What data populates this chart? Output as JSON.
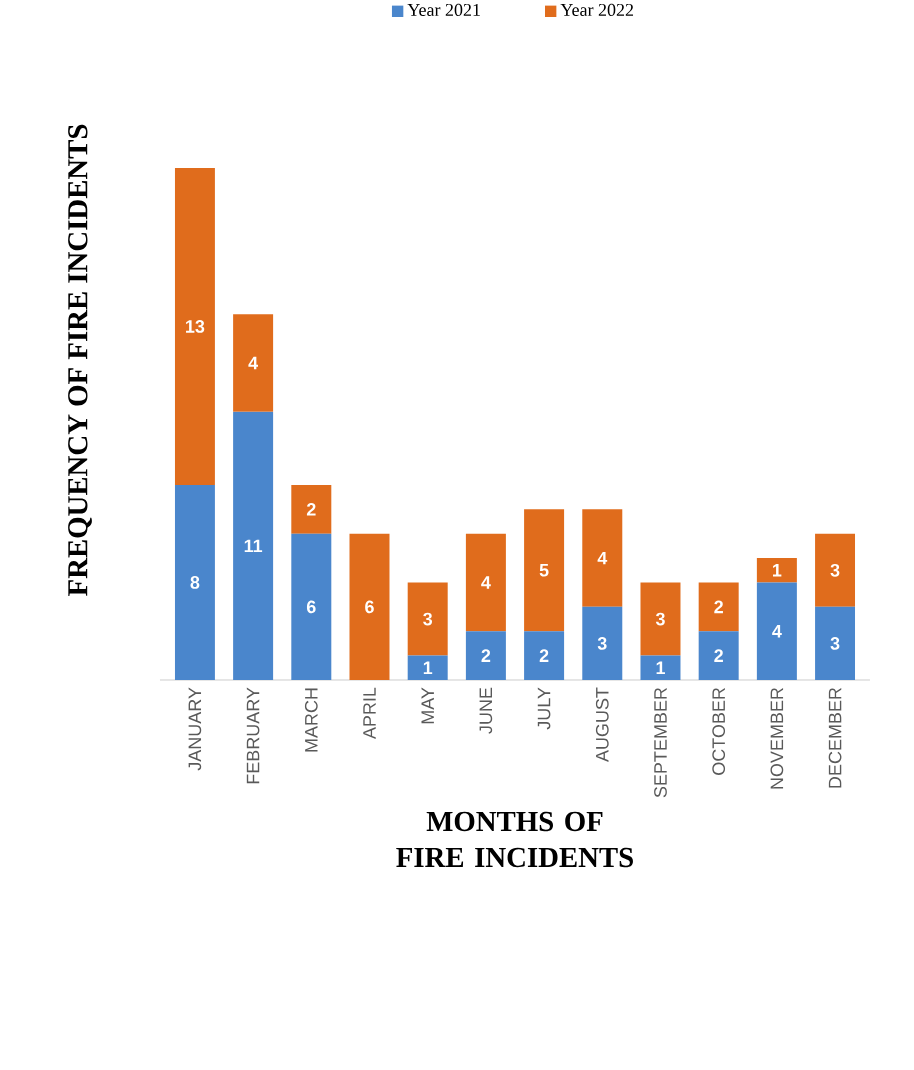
{
  "chart_data": {
    "type": "bar",
    "stacked": true,
    "xlabel": "MONTHS OF FIRE INCIDENTS",
    "ylabel": "FREQUENCY OF FIRE INCIDENTS",
    "legend": "top",
    "categories": [
      "JANUARY",
      "FEBRUARY",
      "MARCH",
      "APRIL",
      "MAY",
      "JUNE",
      "JULY",
      "AUGUST",
      "SEPTEMBER",
      "OCTOBER",
      "NOVEMBER",
      "DECEMBER"
    ],
    "series": [
      {
        "name": "Year 2021",
        "color": "#4a86cc",
        "values": [
          8,
          11,
          6,
          0,
          1,
          2,
          2,
          3,
          1,
          2,
          4,
          3
        ],
        "value_labels": [
          "8",
          "11",
          "6",
          null,
          "1",
          "2",
          "2",
          "3",
          "1",
          "2",
          "4",
          "3"
        ]
      },
      {
        "name": "Year 2022",
        "color": "#e06c1c",
        "values": [
          13,
          4,
          2,
          6,
          3,
          4,
          5,
          4,
          3,
          2,
          1,
          3
        ],
        "value_labels": [
          "13",
          "4",
          "2",
          "6",
          "3",
          "4",
          "5",
          "4",
          "3",
          "2",
          "1",
          "3"
        ]
      }
    ]
  }
}
